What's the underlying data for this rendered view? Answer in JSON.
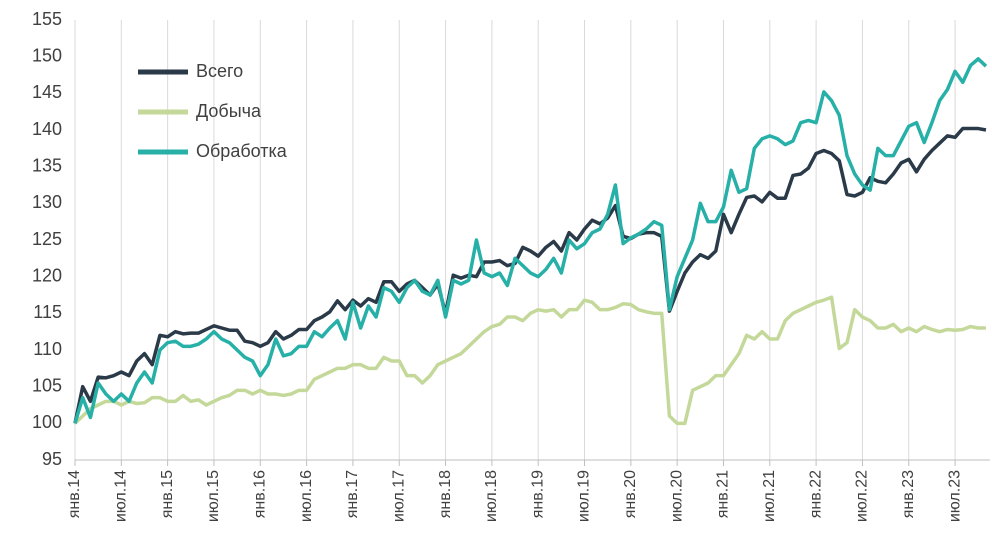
{
  "chart_data": {
    "type": "line",
    "categories": [
      "янв.14",
      null,
      null,
      null,
      null,
      null,
      "июл.14",
      null,
      null,
      null,
      null,
      null,
      "янв.15",
      null,
      null,
      null,
      null,
      null,
      "июл.15",
      null,
      null,
      null,
      null,
      null,
      "янв.16",
      null,
      null,
      null,
      null,
      null,
      "июл.16",
      null,
      null,
      null,
      null,
      null,
      "янв.17",
      null,
      null,
      null,
      null,
      null,
      "июл.17",
      null,
      null,
      null,
      null,
      null,
      "янв.18",
      null,
      null,
      null,
      null,
      null,
      "июл.18",
      null,
      null,
      null,
      null,
      null,
      "янв.19",
      null,
      null,
      null,
      null,
      null,
      "июл.19",
      null,
      null,
      null,
      null,
      null,
      "янв.20",
      null,
      null,
      null,
      null,
      null,
      "июл.20",
      null,
      null,
      null,
      null,
      null,
      "янв.21",
      null,
      null,
      null,
      null,
      null,
      "июл.21",
      null,
      null,
      null,
      null,
      null,
      "янв.22",
      null,
      null,
      null,
      null,
      null,
      "июл.22",
      null,
      null,
      null,
      null,
      null,
      "янв.23",
      null,
      null,
      null,
      null,
      null,
      "июл.23",
      null,
      null,
      null,
      null
    ],
    "series": [
      {
        "name": "Всего",
        "color": "#2b3a48",
        "values": [
          100,
          105,
          103,
          106.3,
          106.2,
          106.5,
          107,
          106.5,
          108.5,
          109.5,
          108,
          112,
          111.8,
          112.5,
          112.2,
          112.3,
          112.3,
          112.8,
          113.3,
          113,
          112.7,
          112.7,
          111.2,
          111,
          110.5,
          111,
          112.5,
          111.5,
          112,
          112.8,
          112.8,
          114,
          114.5,
          115.2,
          116.7,
          115.5,
          116.8,
          116,
          117,
          116.5,
          119.3,
          119.3,
          118,
          119,
          119.5,
          118.5,
          117.5,
          119,
          115,
          120.2,
          119.8,
          120.2,
          120,
          122,
          122,
          122.2,
          121.5,
          121.8,
          124,
          123.5,
          122.8,
          124,
          124.8,
          123.5,
          126,
          125,
          126.5,
          127.7,
          127.2,
          128,
          129.7,
          125.5,
          125.2,
          125.8,
          126,
          126,
          125.5,
          115.3,
          118,
          120.5,
          122,
          123,
          122.5,
          123.5,
          128.5,
          126,
          128.5,
          130.8,
          131,
          130.2,
          131.5,
          130.7,
          130.7,
          133.8,
          134,
          134.8,
          136.8,
          137.2,
          136.8,
          135.8,
          131.2,
          131,
          131.5,
          133.5,
          133,
          132.8,
          134,
          135.5,
          136,
          134.3,
          136,
          137.2,
          138.2,
          139.2,
          139,
          140.2,
          140.2,
          140.2,
          140
        ]
      },
      {
        "name": "Добыча",
        "color": "#c4d89a",
        "values": [
          100,
          101,
          102,
          102.5,
          103,
          103,
          102.5,
          103,
          102.7,
          102.8,
          103.5,
          103.5,
          103,
          103,
          103.8,
          103,
          103.2,
          102.5,
          103,
          103.5,
          103.8,
          104.5,
          104.5,
          104,
          104.5,
          104,
          104,
          103.8,
          104,
          104.5,
          104.5,
          106,
          106.5,
          107,
          107.5,
          107.5,
          108,
          108,
          107.5,
          107.5,
          109,
          108.5,
          108.5,
          106.5,
          106.5,
          105.5,
          106.5,
          108,
          108.5,
          109,
          109.5,
          110.5,
          111.5,
          112.5,
          113.2,
          113.5,
          114.5,
          114.5,
          114,
          115,
          115.5,
          115.3,
          115.5,
          114.5,
          115.5,
          115.5,
          116.8,
          116.5,
          115.5,
          115.5,
          115.8,
          116.3,
          116.2,
          115.5,
          115.2,
          115,
          115,
          101,
          100,
          100,
          104.5,
          105,
          105.5,
          106.5,
          106.5,
          108,
          109.5,
          112,
          111.5,
          112.5,
          111.5,
          111.5,
          114,
          115,
          115.5,
          116,
          116.5,
          116.8,
          117.2,
          110.2,
          111,
          115.5,
          114.5,
          114,
          113,
          113,
          113.5,
          112.5,
          113,
          112.5,
          113.2,
          112.8,
          112.5,
          112.8,
          112.7,
          112.8,
          113.2,
          113,
          113
        ]
      },
      {
        "name": "Обработка",
        "color": "#26b0a8",
        "values": [
          100,
          103.5,
          100.8,
          105.5,
          104,
          103,
          104,
          103,
          105.5,
          107,
          105.5,
          110,
          111,
          111.2,
          110.5,
          110.5,
          110.8,
          111.5,
          112.5,
          111.5,
          111,
          110,
          109,
          108.5,
          106.5,
          108,
          111.5,
          109.2,
          109.5,
          110.5,
          110.5,
          112.5,
          111.8,
          113,
          114,
          111.5,
          116.5,
          113,
          116,
          114.5,
          118.5,
          118,
          116.5,
          118.5,
          119.5,
          118,
          117.5,
          119.5,
          114.5,
          119.5,
          119,
          119.5,
          125,
          120.5,
          120,
          120.5,
          118.8,
          122.5,
          121.5,
          120.5,
          120,
          121,
          122.5,
          120.5,
          125,
          123.8,
          124.5,
          126,
          126.5,
          128.5,
          132.5,
          124.5,
          125.3,
          125.8,
          126.5,
          127.5,
          127,
          115.5,
          120,
          122.5,
          125,
          130,
          127.5,
          127.5,
          129.5,
          134.5,
          131.5,
          132,
          137.5,
          138.8,
          139.2,
          138.8,
          138,
          138.5,
          141,
          141.3,
          141,
          145.2,
          144,
          142,
          136.5,
          134,
          132.5,
          131.8,
          137.5,
          136.5,
          136.5,
          138.5,
          140.5,
          141,
          138.3,
          141,
          144,
          145.5,
          148,
          146.5,
          148.8,
          149.7,
          148.7
        ]
      }
    ],
    "ylim": [
      95,
      155
    ],
    "yticks": [
      95,
      100,
      105,
      110,
      115,
      120,
      125,
      130,
      135,
      140,
      145,
      150,
      155
    ],
    "grid": "x",
    "legend": "upper left"
  }
}
